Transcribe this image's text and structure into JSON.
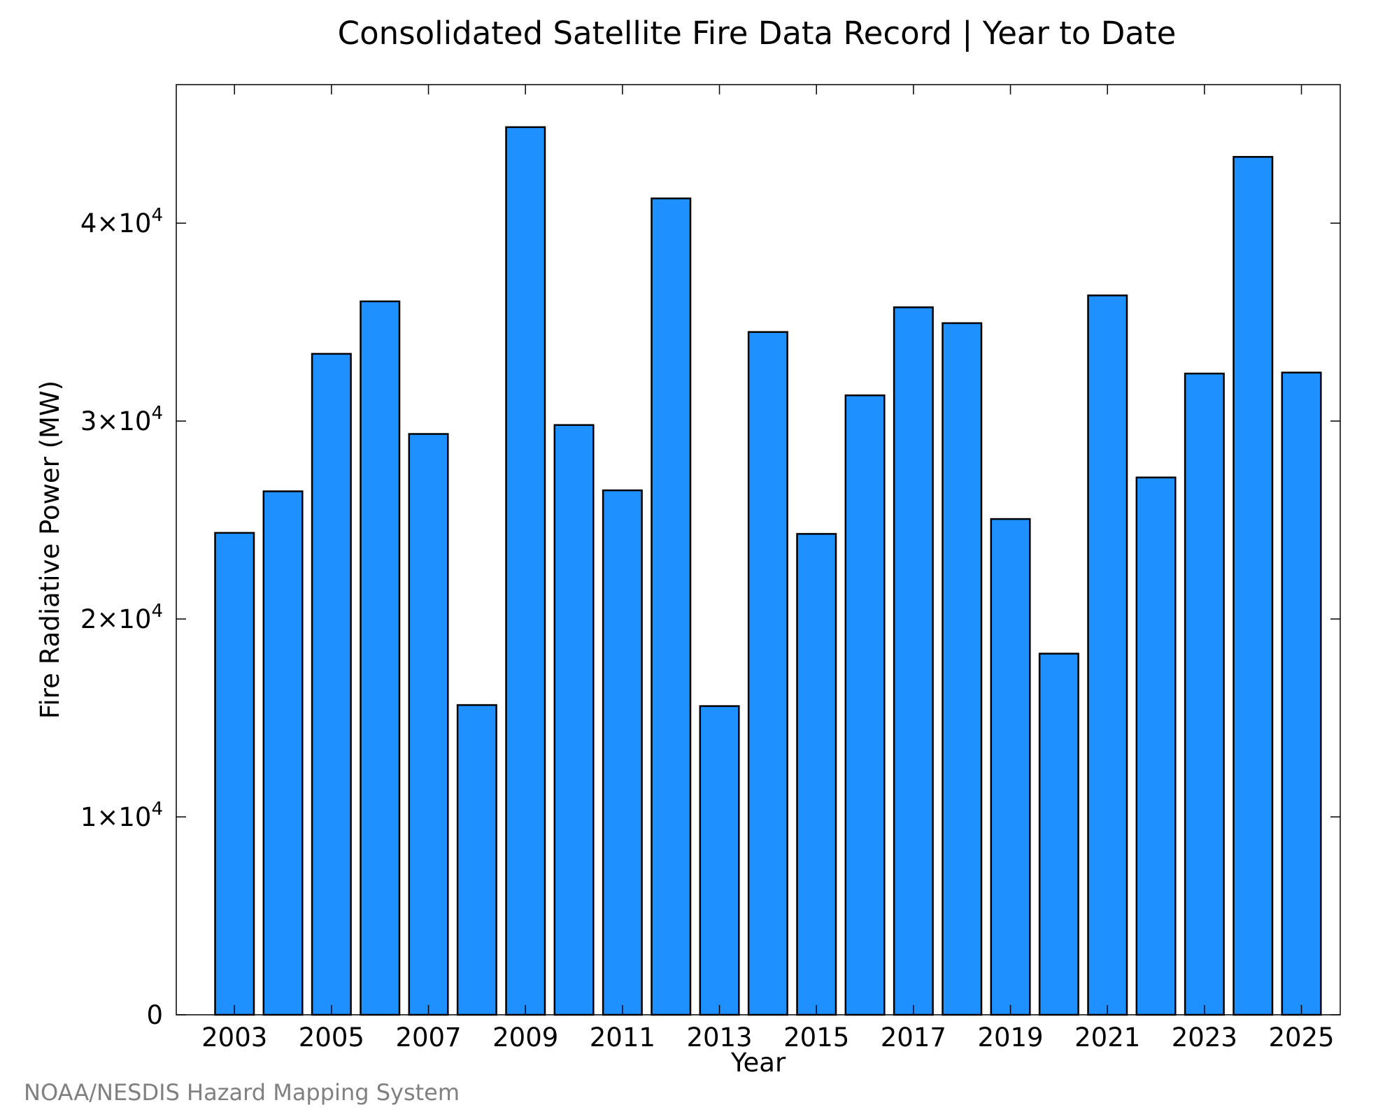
{
  "chart_data": {
    "type": "bar",
    "title": "Consolidated Satellite Fire Data Record | Year to Date",
    "xlabel": "Year",
    "ylabel": "Fire Radiative Power (MW)",
    "x": [
      2003,
      2004,
      2005,
      2006,
      2007,
      2008,
      2009,
      2010,
      2011,
      2012,
      2013,
      2014,
      2015,
      2016,
      2017,
      2018,
      2019,
      2020,
      2021,
      2022,
      2023,
      2024,
      2025
    ],
    "values": [
      24350,
      26450,
      33400,
      36050,
      29350,
      15650,
      44850,
      29800,
      26500,
      41250,
      15600,
      34500,
      24300,
      31300,
      35750,
      34950,
      25050,
      18250,
      36350,
      27150,
      32400,
      43350,
      32450
    ],
    "ylim": [
      0,
      47000
    ],
    "xlim": [
      2001.8,
      2025.8
    ],
    "x_tick_labels": [
      "2003",
      "2005",
      "2007",
      "2009",
      "2011",
      "2013",
      "2015",
      "2017",
      "2019",
      "2021",
      "2023",
      "2025"
    ],
    "y_ticks": [
      {
        "value": 0,
        "mantissa": "0",
        "exponent": ""
      },
      {
        "value": 10000,
        "mantissa": "1×10",
        "exponent": "4"
      },
      {
        "value": 20000,
        "mantissa": "2×10",
        "exponent": "4"
      },
      {
        "value": 30000,
        "mantissa": "3×10",
        "exponent": "4"
      },
      {
        "value": 40000,
        "mantissa": "4×10",
        "exponent": "4"
      }
    ],
    "grid": false,
    "bar_color": "#1E90FF",
    "bar_edge_color": "#000000"
  },
  "footer": {
    "credit": "NOAA/NESDIS Hazard Mapping System"
  }
}
